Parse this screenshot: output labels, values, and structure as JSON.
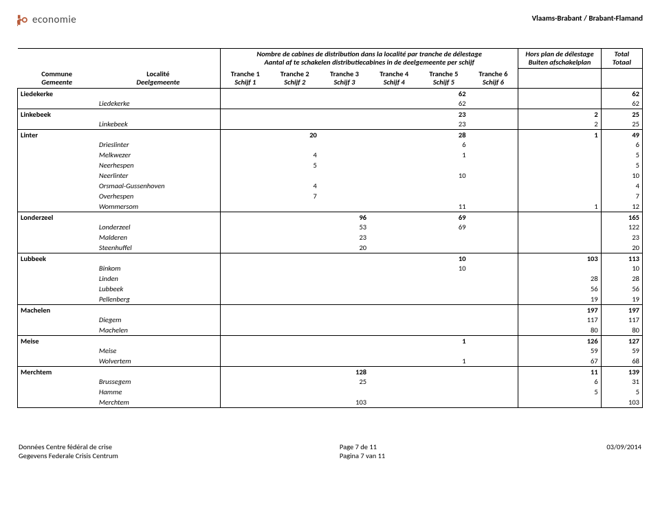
{
  "header": {
    "logo_text": "economie",
    "region": "Vlaams-Brabant / Brabant-Flamand"
  },
  "table_header": {
    "group_fr": "Nombre de cabines de distribution dans la localité par tranche de délestage",
    "group_nl": "Aantal af te schakelen distributiecabines in de deelgemeente per schijf",
    "hors_fr": "Hors plan de délestage",
    "hors_nl": "Buiten afschakelplan",
    "total_fr": "Total",
    "total_nl": "Totaal",
    "commune_fr": "Commune",
    "commune_nl": "Gemeente",
    "localite_fr": "Localité",
    "localite_nl": "Deelgemeente",
    "tranches": [
      {
        "fr": "Tranche 1",
        "nl": "Schijf 1"
      },
      {
        "fr": "Tranche 2",
        "nl": "Schijf 2"
      },
      {
        "fr": "Tranche 3",
        "nl": "Schijf 3"
      },
      {
        "fr": "Tranche 4",
        "nl": "Schijf 4"
      },
      {
        "fr": "Tranche 5",
        "nl": "Schijf 5"
      },
      {
        "fr": "Tranche 6",
        "nl": "Schijf 6"
      }
    ]
  },
  "groups": [
    {
      "commune": "Liedekerke",
      "master": {
        "t": [
          "",
          "",
          "",
          "",
          "62",
          ""
        ],
        "hors": "",
        "total": "62"
      },
      "rows": [
        {
          "loc": "Liedekerke",
          "t": [
            "",
            "",
            "",
            "",
            "62",
            ""
          ],
          "hors": "",
          "total": "62"
        }
      ]
    },
    {
      "commune": "Linkebeek",
      "master": {
        "t": [
          "",
          "",
          "",
          "",
          "23",
          ""
        ],
        "hors": "2",
        "total": "25"
      },
      "rows": [
        {
          "loc": "Linkebeek",
          "t": [
            "",
            "",
            "",
            "",
            "23",
            ""
          ],
          "hors": "2",
          "total": "25"
        }
      ]
    },
    {
      "commune": "Linter",
      "master": {
        "t": [
          "",
          "20",
          "",
          "",
          "28",
          ""
        ],
        "hors": "1",
        "total": "49"
      },
      "rows": [
        {
          "loc": "Drieslinter",
          "t": [
            "",
            "",
            "",
            "",
            "6",
            ""
          ],
          "hors": "",
          "total": "6"
        },
        {
          "loc": "Melkwezer",
          "t": [
            "",
            "4",
            "",
            "",
            "1",
            ""
          ],
          "hors": "",
          "total": "5"
        },
        {
          "loc": "Neerhespen",
          "t": [
            "",
            "5",
            "",
            "",
            "",
            ""
          ],
          "hors": "",
          "total": "5"
        },
        {
          "loc": "Neerlinter",
          "t": [
            "",
            "",
            "",
            "",
            "10",
            ""
          ],
          "hors": "",
          "total": "10"
        },
        {
          "loc": "Orsmaal-Gussenhoven",
          "t": [
            "",
            "4",
            "",
            "",
            "",
            ""
          ],
          "hors": "",
          "total": "4"
        },
        {
          "loc": "Overhespen",
          "t": [
            "",
            "7",
            "",
            "",
            "",
            ""
          ],
          "hors": "",
          "total": "7"
        },
        {
          "loc": "Wommersom",
          "t": [
            "",
            "",
            "",
            "",
            "11",
            ""
          ],
          "hors": "1",
          "total": "12"
        }
      ]
    },
    {
      "commune": "Londerzeel",
      "master": {
        "t": [
          "",
          "",
          "96",
          "",
          "69",
          ""
        ],
        "hors": "",
        "total": "165"
      },
      "rows": [
        {
          "loc": "Londerzeel",
          "t": [
            "",
            "",
            "53",
            "",
            "69",
            ""
          ],
          "hors": "",
          "total": "122"
        },
        {
          "loc": "Malderen",
          "t": [
            "",
            "",
            "23",
            "",
            "",
            ""
          ],
          "hors": "",
          "total": "23"
        },
        {
          "loc": "Steenhuffel",
          "t": [
            "",
            "",
            "20",
            "",
            "",
            ""
          ],
          "hors": "",
          "total": "20"
        }
      ]
    },
    {
      "commune": "Lubbeek",
      "master": {
        "t": [
          "",
          "",
          "",
          "",
          "10",
          ""
        ],
        "hors": "103",
        "total": "113"
      },
      "rows": [
        {
          "loc": "Binkom",
          "t": [
            "",
            "",
            "",
            "",
            "10",
            ""
          ],
          "hors": "",
          "total": "10"
        },
        {
          "loc": "Linden",
          "t": [
            "",
            "",
            "",
            "",
            "",
            ""
          ],
          "hors": "28",
          "total": "28"
        },
        {
          "loc": "Lubbeek",
          "t": [
            "",
            "",
            "",
            "",
            "",
            ""
          ],
          "hors": "56",
          "total": "56"
        },
        {
          "loc": "Pellenberg",
          "t": [
            "",
            "",
            "",
            "",
            "",
            ""
          ],
          "hors": "19",
          "total": "19"
        }
      ]
    },
    {
      "commune": "Machelen",
      "master": {
        "t": [
          "",
          "",
          "",
          "",
          "",
          ""
        ],
        "hors": "197",
        "total": "197"
      },
      "rows": [
        {
          "loc": "Diegem",
          "t": [
            "",
            "",
            "",
            "",
            "",
            ""
          ],
          "hors": "117",
          "total": "117"
        },
        {
          "loc": "Machelen",
          "t": [
            "",
            "",
            "",
            "",
            "",
            ""
          ],
          "hors": "80",
          "total": "80"
        }
      ]
    },
    {
      "commune": "Meise",
      "master": {
        "t": [
          "",
          "",
          "",
          "",
          "1",
          ""
        ],
        "hors": "126",
        "total": "127"
      },
      "rows": [
        {
          "loc": "Meise",
          "t": [
            "",
            "",
            "",
            "",
            "",
            ""
          ],
          "hors": "59",
          "total": "59"
        },
        {
          "loc": "Wolvertem",
          "t": [
            "",
            "",
            "",
            "",
            "1",
            ""
          ],
          "hors": "67",
          "total": "68"
        }
      ]
    },
    {
      "commune": "Merchtem",
      "master": {
        "t": [
          "",
          "",
          "128",
          "",
          "",
          ""
        ],
        "hors": "11",
        "total": "139"
      },
      "rows": [
        {
          "loc": "Brussegem",
          "t": [
            "",
            "",
            "25",
            "",
            "",
            ""
          ],
          "hors": "6",
          "total": "31"
        },
        {
          "loc": "Hamme",
          "t": [
            "",
            "",
            "",
            "",
            "",
            ""
          ],
          "hors": "5",
          "total": "5"
        },
        {
          "loc": "Merchtem",
          "t": [
            "",
            "",
            "103",
            "",
            "",
            ""
          ],
          "hors": "",
          "total": "103"
        }
      ]
    }
  ],
  "footer": {
    "left_fr": "Données Centre fédéral de crise",
    "left_nl": "Gegevens Federale Crisis Centrum",
    "center_fr": "Page 7 de 11",
    "center_nl": "Pagina 7 van 11",
    "right": "03/09/2014"
  }
}
